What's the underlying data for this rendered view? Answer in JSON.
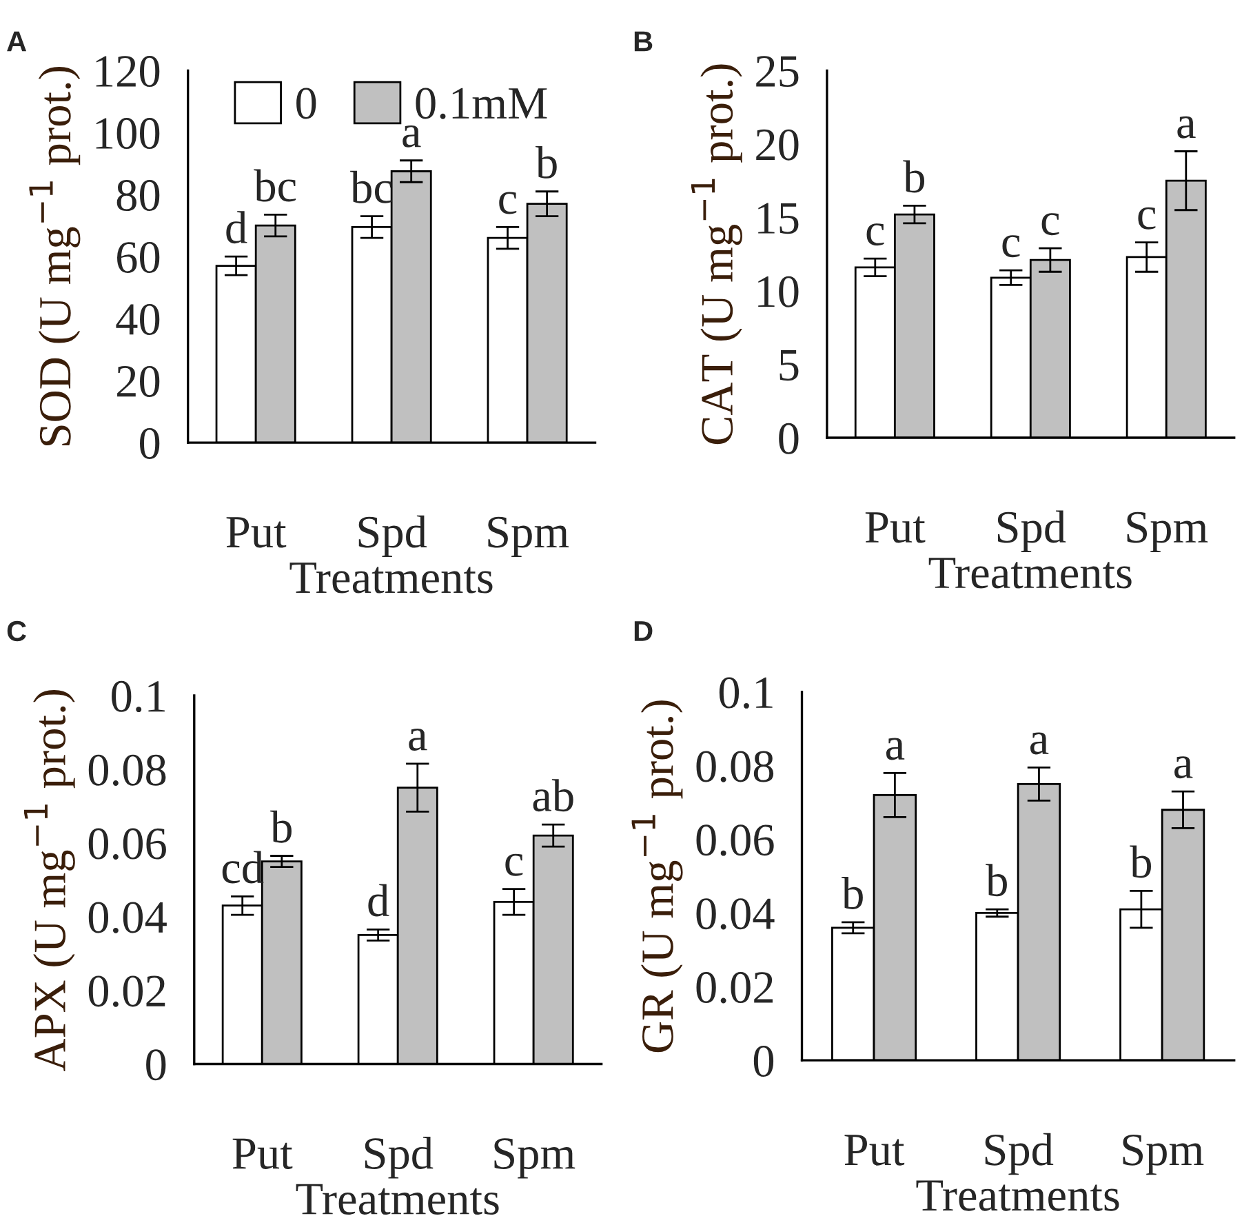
{
  "chart_data": [
    {
      "type": "bar",
      "title": "A",
      "xlabel": "Treatments",
      "ylabel": "SOD (U mg$^{−1}$ prot.)",
      "categories": [
        "Put",
        "Spd",
        "Spm"
      ],
      "ylim": [
        0,
        120
      ],
      "yticks": [
        0,
        20,
        40,
        60,
        80,
        100,
        120
      ],
      "legend": "top",
      "grid": false,
      "series": [
        {
          "name": "0",
          "color": "#ffffff",
          "values": [
            57,
            69.5,
            66
          ],
          "errors": [
            3,
            3.5,
            3.5
          ],
          "value_labels": [
            "d",
            "bc",
            "c"
          ]
        },
        {
          "name": "0.1mM",
          "color": "#c0c0c0",
          "values": [
            70,
            87.5,
            77
          ],
          "errors": [
            3.5,
            3.5,
            4
          ],
          "value_labels": [
            "bc",
            "a",
            "b"
          ]
        }
      ]
    },
    {
      "type": "bar",
      "title": "B",
      "xlabel": "Treatments",
      "ylabel": "CAT (U mg$^{−1}$ prot.)",
      "categories": [
        "Put",
        "Spd",
        "Spm"
      ],
      "ylim": [
        0,
        25
      ],
      "yticks": [
        0,
        5,
        10,
        15,
        20,
        25
      ],
      "grid": false,
      "series": [
        {
          "color": "#ffffff",
          "values": [
            11.6,
            10.9,
            12.3
          ],
          "errors": [
            0.6,
            0.5,
            1
          ],
          "value_labels": [
            "c",
            "c",
            "c"
          ]
        },
        {
          "color": "#c0c0c0",
          "values": [
            15.2,
            12.1,
            17.5
          ],
          "errors": [
            0.6,
            0.8,
            2
          ],
          "value_labels": [
            "b",
            "c",
            "a"
          ]
        }
      ]
    },
    {
      "type": "bar",
      "title": "C",
      "xlabel": "Treatments",
      "ylabel": "APX (U mg$^{−1}$ prot.)",
      "categories": [
        "Put",
        "Spd",
        "Spm"
      ],
      "ylim": [
        0,
        0.1
      ],
      "yticks": [
        0,
        0.02,
        0.04,
        0.06,
        0.08,
        0.1
      ],
      "grid": false,
      "series": [
        {
          "color": "#ffffff",
          "values": [
            0.043,
            0.035,
            0.044
          ],
          "errors": [
            0.0025,
            0.0015,
            0.0035
          ],
          "value_labels": [
            "cd",
            "d",
            "c"
          ]
        },
        {
          "color": "#c0c0c0",
          "values": [
            0.055,
            0.075,
            0.062
          ],
          "errors": [
            0.0015,
            0.0065,
            0.003
          ],
          "value_labels": [
            "b",
            "a",
            "ab"
          ]
        }
      ]
    },
    {
      "type": "bar",
      "title": "D",
      "xlabel": "Treatments",
      "ylabel": "GR (U mg$^{−1}$ prot.)",
      "categories": [
        "Put",
        "Spd",
        "Spm"
      ],
      "ylim": [
        0,
        0.1
      ],
      "yticks": [
        0,
        0.02,
        0.04,
        0.06,
        0.08,
        0.1
      ],
      "grid": false,
      "series": [
        {
          "color": "#ffffff",
          "values": [
            0.036,
            0.04,
            0.041
          ],
          "errors": [
            0.0015,
            0.001,
            0.005
          ],
          "value_labels": [
            "b",
            "b",
            "b"
          ]
        },
        {
          "color": "#c0c0c0",
          "values": [
            0.072,
            0.075,
            0.068
          ],
          "errors": [
            0.006,
            0.0045,
            0.005
          ],
          "value_labels": [
            "a",
            "a",
            "a"
          ]
        }
      ]
    }
  ]
}
